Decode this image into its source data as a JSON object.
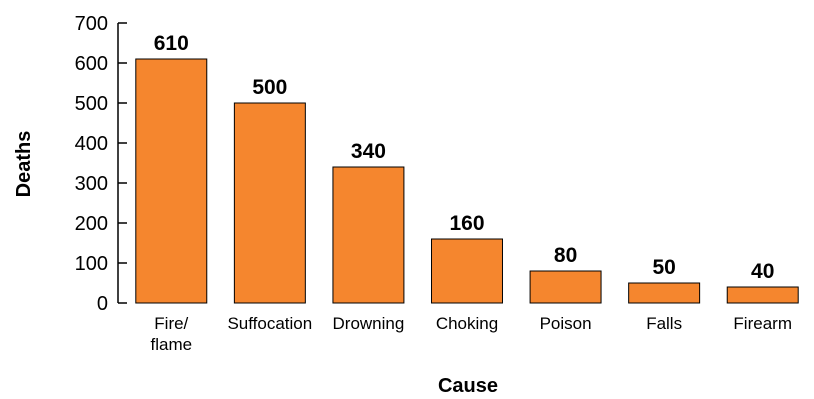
{
  "chart_data": {
    "type": "bar",
    "categories": [
      "Fire/ flame",
      "Suffocation",
      "Drowning",
      "Choking",
      "Poison",
      "Falls",
      "Firearm"
    ],
    "category_lines": [
      [
        "Fire/",
        "flame"
      ],
      [
        "Suffocation"
      ],
      [
        "Drowning"
      ],
      [
        "Choking"
      ],
      [
        "Poison"
      ],
      [
        "Falls"
      ],
      [
        "Firearm"
      ]
    ],
    "values": [
      610,
      500,
      340,
      160,
      80,
      50,
      40
    ],
    "data_labels": [
      "610",
      "500",
      "340",
      "160",
      "80",
      "50",
      "40"
    ],
    "title": "",
    "xlabel": "Cause",
    "ylabel": "Deaths",
    "ylim": [
      0,
      700
    ],
    "yticks": [
      0,
      100,
      200,
      300,
      400,
      500,
      600,
      700
    ],
    "ytick_labels": [
      "0",
      "100",
      "200",
      "300",
      "400",
      "500",
      "600",
      "700"
    ],
    "grid": false,
    "legend": "none",
    "bar_color": "#F5862E",
    "bar_edge_color": "#000000"
  }
}
